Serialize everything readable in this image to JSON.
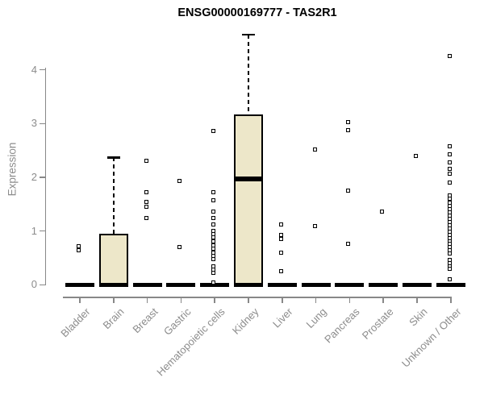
{
  "chart_data": {
    "type": "boxplot",
    "title": "ENSG00000169777 - TAS2R1",
    "ylabel": "Expression",
    "xlabel": "",
    "yticks": [
      0,
      1,
      2,
      3,
      4
    ],
    "ylim": [
      0,
      4.75
    ],
    "grid": false,
    "legend": "none",
    "categories": [
      "Bladder",
      "Brain",
      "Breast",
      "Gastric",
      "Hematopoietic cells",
      "Kidney",
      "Liver",
      "Lung",
      "Pancreas",
      "Prostate",
      "Skin",
      "Unknown / Other"
    ],
    "boxes": [
      {
        "category": "Bladder",
        "q1": 0,
        "median": 0,
        "q3": 0,
        "whisker_high": 0
      },
      {
        "category": "Brain",
        "q1": 0,
        "median": 0,
        "q3": 0.95,
        "whisker_high": 2.37
      },
      {
        "category": "Breast",
        "q1": 0,
        "median": 0,
        "q3": 0,
        "whisker_high": 0
      },
      {
        "category": "Gastric",
        "q1": 0,
        "median": 0,
        "q3": 0,
        "whisker_high": 0
      },
      {
        "category": "Hematopoietic cells",
        "q1": 0,
        "median": 0,
        "q3": 0,
        "whisker_high": 0
      },
      {
        "category": "Kidney",
        "q1": 0,
        "median": 1.97,
        "q3": 3.17,
        "whisker_high": 4.65
      },
      {
        "category": "Liver",
        "q1": 0,
        "median": 0,
        "q3": 0,
        "whisker_high": 0
      },
      {
        "category": "Lung",
        "q1": 0,
        "median": 0,
        "q3": 0,
        "whisker_high": 0
      },
      {
        "category": "Pancreas",
        "q1": 0,
        "median": 0,
        "q3": 0,
        "whisker_high": 0
      },
      {
        "category": "Prostate",
        "q1": 0,
        "median": 0,
        "q3": 0,
        "whisker_high": 0
      },
      {
        "category": "Skin",
        "q1": 0,
        "median": 0,
        "q3": 0,
        "whisker_high": 0
      },
      {
        "category": "Unknown / Other",
        "q1": 0,
        "median": 0,
        "q3": 0,
        "whisker_high": 0
      }
    ],
    "points": {
      "Bladder": [
        0.72,
        0.64
      ],
      "Brain": [],
      "Breast": [
        2.3,
        1.73,
        1.54,
        1.45,
        1.25
      ],
      "Gastric": [
        1.94,
        0.7
      ],
      "Hematopoietic cells": [
        2.86,
        1.73,
        1.58,
        1.37,
        1.25,
        1.13,
        1.0,
        0.95,
        0.88,
        0.81,
        0.74,
        0.67,
        0.6,
        0.54,
        0.48,
        0.34,
        0.28,
        0.22,
        0.05
      ],
      "Kidney": [],
      "Liver": [
        1.13,
        0.93,
        0.85,
        0.6,
        0.25
      ],
      "Lung": [
        2.52,
        1.1
      ],
      "Pancreas": [
        3.02,
        2.87,
        1.76,
        0.76
      ],
      "Prostate": [
        1.36
      ],
      "Skin": [
        2.39
      ],
      "Unknown / Other": [
        4.26,
        2.57,
        2.43,
        2.28,
        2.15,
        2.07,
        1.91,
        1.66,
        1.6,
        1.53,
        1.47,
        1.41,
        1.35,
        1.29,
        1.23,
        1.17,
        1.11,
        1.05,
        0.99,
        0.93,
        0.87,
        0.81,
        0.76,
        0.7,
        0.64,
        0.59,
        0.47,
        0.41,
        0.35,
        0.3,
        0.11
      ]
    },
    "colors": {
      "box_fill": "#EDE7C9",
      "box_border": "#000000",
      "median": "#000000",
      "axis": "#888888",
      "text": "#8C8C8C",
      "title": "#000000",
      "background": "#FFFFFF"
    }
  }
}
